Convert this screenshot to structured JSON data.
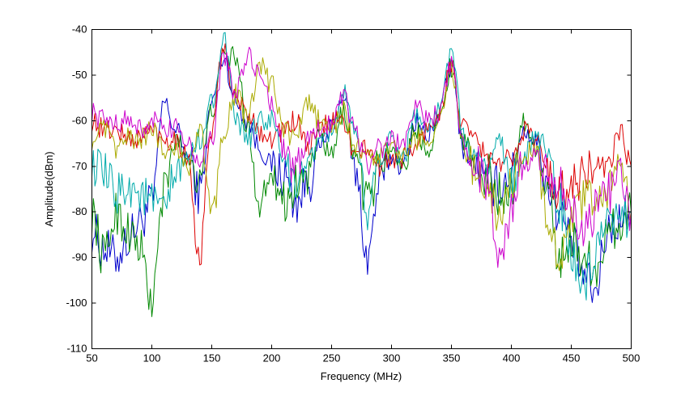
{
  "chart_data": {
    "type": "line",
    "title": "",
    "xlabel": "Frequency (MHz)",
    "ylabel": "Amplitude(dBm)",
    "xlim": [
      50,
      500
    ],
    "ylim": [
      -110,
      -40
    ],
    "xticks": [
      "50",
      "100",
      "150",
      "200",
      "250",
      "300",
      "350",
      "400",
      "450",
      "500"
    ],
    "yticks": [
      "-40",
      "-50",
      "-60",
      "-70",
      "-80",
      "-90",
      "-100",
      "-110"
    ],
    "grid": false,
    "legend": "none",
    "x": [
      50,
      60,
      70,
      80,
      90,
      100,
      110,
      120,
      130,
      140,
      150,
      160,
      170,
      180,
      190,
      200,
      210,
      220,
      230,
      240,
      250,
      260,
      270,
      280,
      290,
      300,
      310,
      320,
      330,
      340,
      350,
      360,
      370,
      380,
      390,
      400,
      410,
      420,
      430,
      440,
      450,
      460,
      470,
      480,
      490,
      500
    ],
    "series": [
      {
        "color": "#0000cc",
        "values": [
          -84,
          -88,
          -90,
          -86,
          -82,
          -78,
          -56,
          -62,
          -68,
          -76,
          -56,
          -46,
          -56,
          -60,
          -66,
          -70,
          -72,
          -78,
          -74,
          -66,
          -62,
          -54,
          -72,
          -90,
          -74,
          -68,
          -70,
          -60,
          -64,
          -58,
          -48,
          -66,
          -70,
          -74,
          -74,
          -72,
          -62,
          -64,
          -74,
          -80,
          -86,
          -94,
          -98,
          -84,
          -82,
          -80
        ]
      },
      {
        "color": "#008800",
        "values": [
          -80,
          -90,
          -80,
          -84,
          -88,
          -100,
          -76,
          -64,
          -68,
          -72,
          -58,
          -46,
          -46,
          -62,
          -78,
          -70,
          -78,
          -74,
          -72,
          -64,
          -68,
          -58,
          -68,
          -78,
          -70,
          -66,
          -70,
          -62,
          -66,
          -60,
          -48,
          -64,
          -70,
          -72,
          -76,
          -74,
          -60,
          -66,
          -76,
          -90,
          -86,
          -90,
          -92,
          -86,
          -82,
          -80
        ]
      },
      {
        "color": "#dd0000",
        "values": [
          -60,
          -62,
          -62,
          -64,
          -64,
          -62,
          -64,
          -64,
          -68,
          -90,
          -62,
          -44,
          -56,
          -58,
          -62,
          -64,
          -62,
          -60,
          -66,
          -62,
          -60,
          -60,
          -68,
          -66,
          -70,
          -68,
          -68,
          -66,
          -62,
          -58,
          -48,
          -62,
          -64,
          -68,
          -70,
          -68,
          -62,
          -64,
          -70,
          -76,
          -74,
          -72,
          -70,
          -72,
          -62,
          -70
        ]
      },
      {
        "color": "#00aaaa",
        "values": [
          -70,
          -72,
          -76,
          -74,
          -76,
          -78,
          -80,
          -72,
          -68,
          -64,
          -56,
          -42,
          -60,
          -64,
          -60,
          -60,
          -68,
          -76,
          -68,
          -66,
          -62,
          -54,
          -64,
          -80,
          -68,
          -64,
          -68,
          -58,
          -62,
          -58,
          -44,
          -64,
          -68,
          -70,
          -64,
          -74,
          -68,
          -64,
          -66,
          -78,
          -90,
          -96,
          -90,
          -84,
          -82,
          -80
        ]
      },
      {
        "color": "#aaaa00",
        "values": [
          -64,
          -62,
          -66,
          -64,
          -64,
          -62,
          -66,
          -66,
          -70,
          -62,
          -80,
          -62,
          -54,
          -60,
          -48,
          -52,
          -62,
          -64,
          -56,
          -60,
          -62,
          -58,
          -66,
          -68,
          -68,
          -66,
          -68,
          -64,
          -64,
          -60,
          -48,
          -66,
          -72,
          -74,
          -80,
          -74,
          -68,
          -66,
          -80,
          -90,
          -82,
          -78,
          -76,
          -76,
          -68,
          -80
        ]
      },
      {
        "color": "#cc00cc",
        "values": [
          -58,
          -60,
          -60,
          -60,
          -62,
          -60,
          -62,
          -62,
          -64,
          -70,
          -64,
          -46,
          -54,
          -46,
          -50,
          -56,
          -66,
          -72,
          -64,
          -62,
          -60,
          -54,
          -62,
          -70,
          -66,
          -64,
          -66,
          -56,
          -60,
          -58,
          -48,
          -66,
          -70,
          -74,
          -88,
          -80,
          -70,
          -68,
          -72,
          -74,
          -80,
          -84,
          -80,
          -76,
          -72,
          -80
        ]
      }
    ]
  }
}
